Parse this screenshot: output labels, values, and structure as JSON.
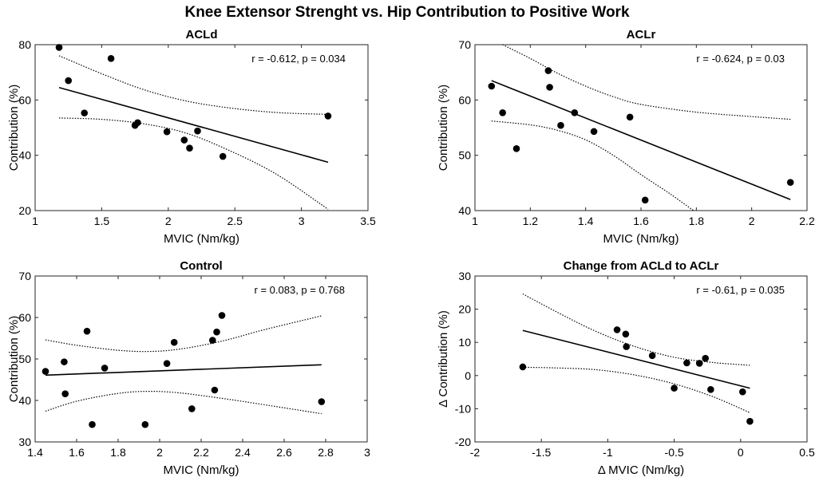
{
  "figure_title": "Knee Extensor Strenght vs. Hip Contribution to Positive Work",
  "chart_data": [
    {
      "type": "scatter",
      "title": "ACLd",
      "xlabel": "MVIC (Nm/kg)",
      "ylabel": "Contribution (%)",
      "xlim": [
        1,
        3.5
      ],
      "ylim": [
        20,
        80
      ],
      "xticks": [
        1,
        1.5,
        2,
        2.5,
        3,
        3.5
      ],
      "xtick_labels": [
        "1",
        "1.5",
        "2",
        "2.5",
        "3",
        "3.5"
      ],
      "yticks": [
        20,
        40,
        60,
        80
      ],
      "ytick_labels": [
        "20",
        "40",
        "60",
        "80"
      ],
      "annotation": "r = -0.612, p = 0.034",
      "points": [
        [
          1.18,
          79
        ],
        [
          1.25,
          67
        ],
        [
          1.37,
          55.3
        ],
        [
          1.57,
          75
        ],
        [
          1.75,
          50.8
        ],
        [
          1.77,
          51.8
        ],
        [
          1.99,
          48.5
        ],
        [
          2.12,
          45.5
        ],
        [
          2.16,
          42.6
        ],
        [
          2.22,
          48.8
        ],
        [
          2.41,
          39.6
        ],
        [
          3.2,
          54.2
        ]
      ],
      "fit_line": [
        [
          1.18,
          64.5
        ],
        [
          3.2,
          37.5
        ]
      ],
      "ci_upper": [
        [
          1.18,
          76
        ],
        [
          1.5,
          69.5
        ],
        [
          1.8,
          64
        ],
        [
          2.1,
          60
        ],
        [
          2.4,
          57.5
        ],
        [
          2.8,
          55.5
        ],
        [
          3.2,
          54.8
        ]
      ],
      "ci_lower": [
        [
          1.18,
          53.5
        ],
        [
          1.5,
          53
        ],
        [
          1.8,
          51.5
        ],
        [
          2.1,
          48.5
        ],
        [
          2.4,
          43
        ],
        [
          2.8,
          33.5
        ],
        [
          3.2,
          20.5
        ]
      ]
    },
    {
      "type": "scatter",
      "title": "ACLr",
      "xlabel": "MVIC (Nm/kg)",
      "ylabel": "Contribution (%)",
      "xlim": [
        1,
        2.2
      ],
      "ylim": [
        40,
        70
      ],
      "xticks": [
        1,
        1.2,
        1.4,
        1.6,
        1.8,
        2,
        2.2
      ],
      "xtick_labels": [
        "1",
        "1.2",
        "1.4",
        "1.6",
        "1.8",
        "2",
        "2.2"
      ],
      "yticks": [
        40,
        50,
        60,
        70
      ],
      "ytick_labels": [
        "40",
        "50",
        "60",
        "70"
      ],
      "annotation": "r = -0.624, p = 0.03",
      "points": [
        [
          1.06,
          62.5
        ],
        [
          1.1,
          57.7
        ],
        [
          1.15,
          51.2
        ],
        [
          1.265,
          65.3
        ],
        [
          1.27,
          62.3
        ],
        [
          1.31,
          55.4
        ],
        [
          1.36,
          57.7
        ],
        [
          1.43,
          54.3
        ],
        [
          1.56,
          56.9
        ],
        [
          1.615,
          41.9
        ],
        [
          2.14,
          45.1
        ]
      ],
      "fit_line": [
        [
          1.06,
          63.5
        ],
        [
          2.14,
          42
        ]
      ],
      "ci_upper": [
        [
          1.1,
          70
        ],
        [
          1.2,
          67.5
        ],
        [
          1.3,
          64.8
        ],
        [
          1.4,
          62.5
        ],
        [
          1.5,
          60.6
        ],
        [
          1.6,
          59.2
        ],
        [
          1.8,
          57.8
        ],
        [
          2.0,
          57
        ],
        [
          2.14,
          56.5
        ]
      ],
      "ci_lower": [
        [
          1.06,
          56.2
        ],
        [
          1.2,
          55.5
        ],
        [
          1.3,
          54.5
        ],
        [
          1.4,
          52.8
        ],
        [
          1.5,
          50
        ],
        [
          1.6,
          46.5
        ],
        [
          1.7,
          43.2
        ],
        [
          1.79,
          40
        ]
      ]
    },
    {
      "type": "scatter",
      "title": "Control",
      "xlabel": "MVIC (Nm/kg)",
      "ylabel": "Contribution (%)",
      "xlim": [
        1.4,
        3
      ],
      "ylim": [
        30,
        70
      ],
      "xticks": [
        1.4,
        1.6,
        1.8,
        2,
        2.2,
        2.4,
        2.6,
        2.8,
        3
      ],
      "xtick_labels": [
        "1.4",
        "1.6",
        "1.8",
        "2",
        "2.2",
        "2.4",
        "2.6",
        "2.8",
        "3"
      ],
      "yticks": [
        30,
        40,
        50,
        60,
        70
      ],
      "ytick_labels": [
        "30",
        "40",
        "50",
        "60",
        "70"
      ],
      "annotation": "r = 0.083, p = 0.768",
      "points": [
        [
          1.45,
          47
        ],
        [
          1.54,
          49.3
        ],
        [
          1.545,
          41.6
        ],
        [
          1.65,
          56.7
        ],
        [
          1.675,
          34.2
        ],
        [
          1.735,
          47.8
        ],
        [
          1.93,
          34.2
        ],
        [
          2.035,
          48.9
        ],
        [
          2.07,
          54
        ],
        [
          2.155,
          38
        ],
        [
          2.255,
          54.5
        ],
        [
          2.265,
          42.5
        ],
        [
          2.275,
          56.5
        ],
        [
          2.3,
          60.5
        ],
        [
          2.78,
          39.7
        ]
      ],
      "fit_line": [
        [
          1.45,
          46.1
        ],
        [
          2.78,
          48.6
        ]
      ],
      "ci_upper": [
        [
          1.45,
          54.6
        ],
        [
          1.6,
          53.3
        ],
        [
          1.8,
          52.1
        ],
        [
          1.95,
          51.8
        ],
        [
          2.1,
          52.4
        ],
        [
          2.3,
          54.3
        ],
        [
          2.5,
          57
        ],
        [
          2.78,
          60.4
        ]
      ],
      "ci_lower": [
        [
          1.45,
          37.4
        ],
        [
          1.6,
          39.8
        ],
        [
          1.8,
          41.7
        ],
        [
          1.95,
          42.2
        ],
        [
          2.1,
          41.8
        ],
        [
          2.3,
          40.5
        ],
        [
          2.5,
          39
        ],
        [
          2.78,
          36.8
        ]
      ]
    },
    {
      "type": "scatter",
      "title": "Change from ACLd to ACLr",
      "xlabel": "Δ MVIC (Nm/kg)",
      "ylabel": "Δ Contribution (%)",
      "xlim": [
        -2,
        0.5
      ],
      "ylim": [
        -20,
        30
      ],
      "xticks": [
        -2,
        -1.5,
        -1,
        -0.5,
        0,
        0.5
      ],
      "xtick_labels": [
        "-2",
        "-1.5",
        "-1",
        "-0.5",
        "0",
        "0.5"
      ],
      "yticks": [
        -20,
        -10,
        0,
        10,
        20,
        30
      ],
      "ytick_labels": [
        "-20",
        "-10",
        "0",
        "10",
        "20",
        "30"
      ],
      "annotation": "r = -0.61, p = 0.035",
      "points": [
        [
          -1.64,
          2.6
        ],
        [
          -0.93,
          13.8
        ],
        [
          -0.865,
          12.5
        ],
        [
          -0.86,
          8.7
        ],
        [
          -0.665,
          6
        ],
        [
          -0.5,
          -3.8
        ],
        [
          -0.405,
          3.8
        ],
        [
          -0.31,
          3.7
        ],
        [
          -0.265,
          5.2
        ],
        [
          -0.225,
          -4.2
        ],
        [
          0.015,
          -4.9
        ],
        [
          0.07,
          -13.8
        ]
      ],
      "fit_line": [
        [
          -1.64,
          13.6
        ],
        [
          0.07,
          -3.8
        ]
      ],
      "ci_upper": [
        [
          -1.64,
          24.6
        ],
        [
          -1.4,
          19.5
        ],
        [
          -1.1,
          13.5
        ],
        [
          -0.8,
          8.8
        ],
        [
          -0.5,
          5.5
        ],
        [
          -0.2,
          3.9
        ],
        [
          0.07,
          3.1
        ]
      ],
      "ci_lower": [
        [
          -1.64,
          2.5
        ],
        [
          -1.4,
          2.3
        ],
        [
          -1.1,
          1.8
        ],
        [
          -0.8,
          0.2
        ],
        [
          -0.5,
          -2.5
        ],
        [
          -0.2,
          -6.5
        ],
        [
          0.07,
          -11.2
        ]
      ]
    }
  ]
}
